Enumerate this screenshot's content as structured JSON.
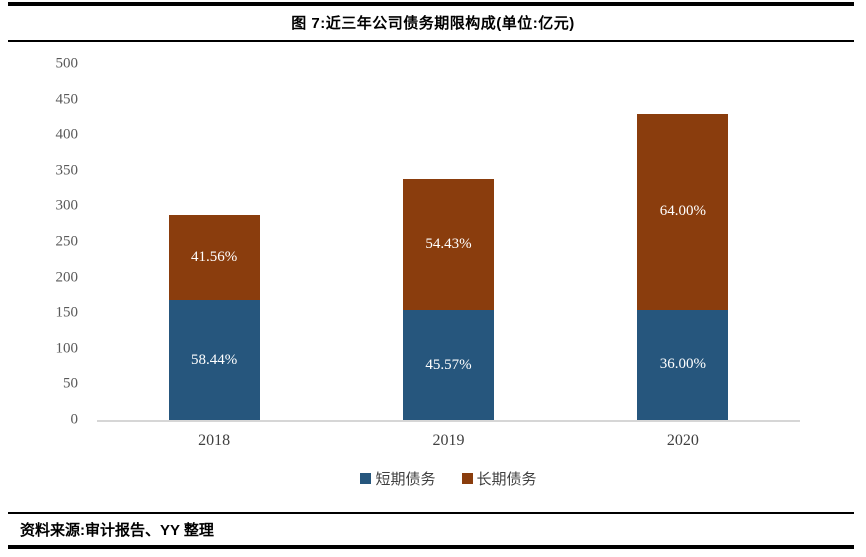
{
  "header": {
    "title": "图 7:近三年公司债务期限构成(单位:亿元)"
  },
  "source": {
    "text": "资料来源:审计报告、YY 整理"
  },
  "chart_data": {
    "type": "bar",
    "stacked": true,
    "title": "图 7:近三年公司债务期限构成(单位:亿元)",
    "unit": "亿元",
    "categories": [
      "2018",
      "2019",
      "2020"
    ],
    "totals": [
      288,
      338,
      430
    ],
    "series": [
      {
        "name": "短期债务",
        "color": "#26567D",
        "values": [
          168.3,
          154.0,
          154.8
        ],
        "percent_labels": [
          "58.44%",
          "45.57%",
          "36.00%"
        ]
      },
      {
        "name": "长期债务",
        "color": "#8A3D0D",
        "values": [
          119.7,
          184.0,
          275.2
        ],
        "percent_labels": [
          "41.56%",
          "54.43%",
          "64.00%"
        ]
      }
    ],
    "ylim": [
      0,
      500
    ],
    "yticks": [
      0,
      50,
      100,
      150,
      200,
      250,
      300,
      350,
      400,
      450,
      500
    ],
    "axis_line_color": "#d6d6d6",
    "legend_position": "bottom",
    "grid": false
  }
}
